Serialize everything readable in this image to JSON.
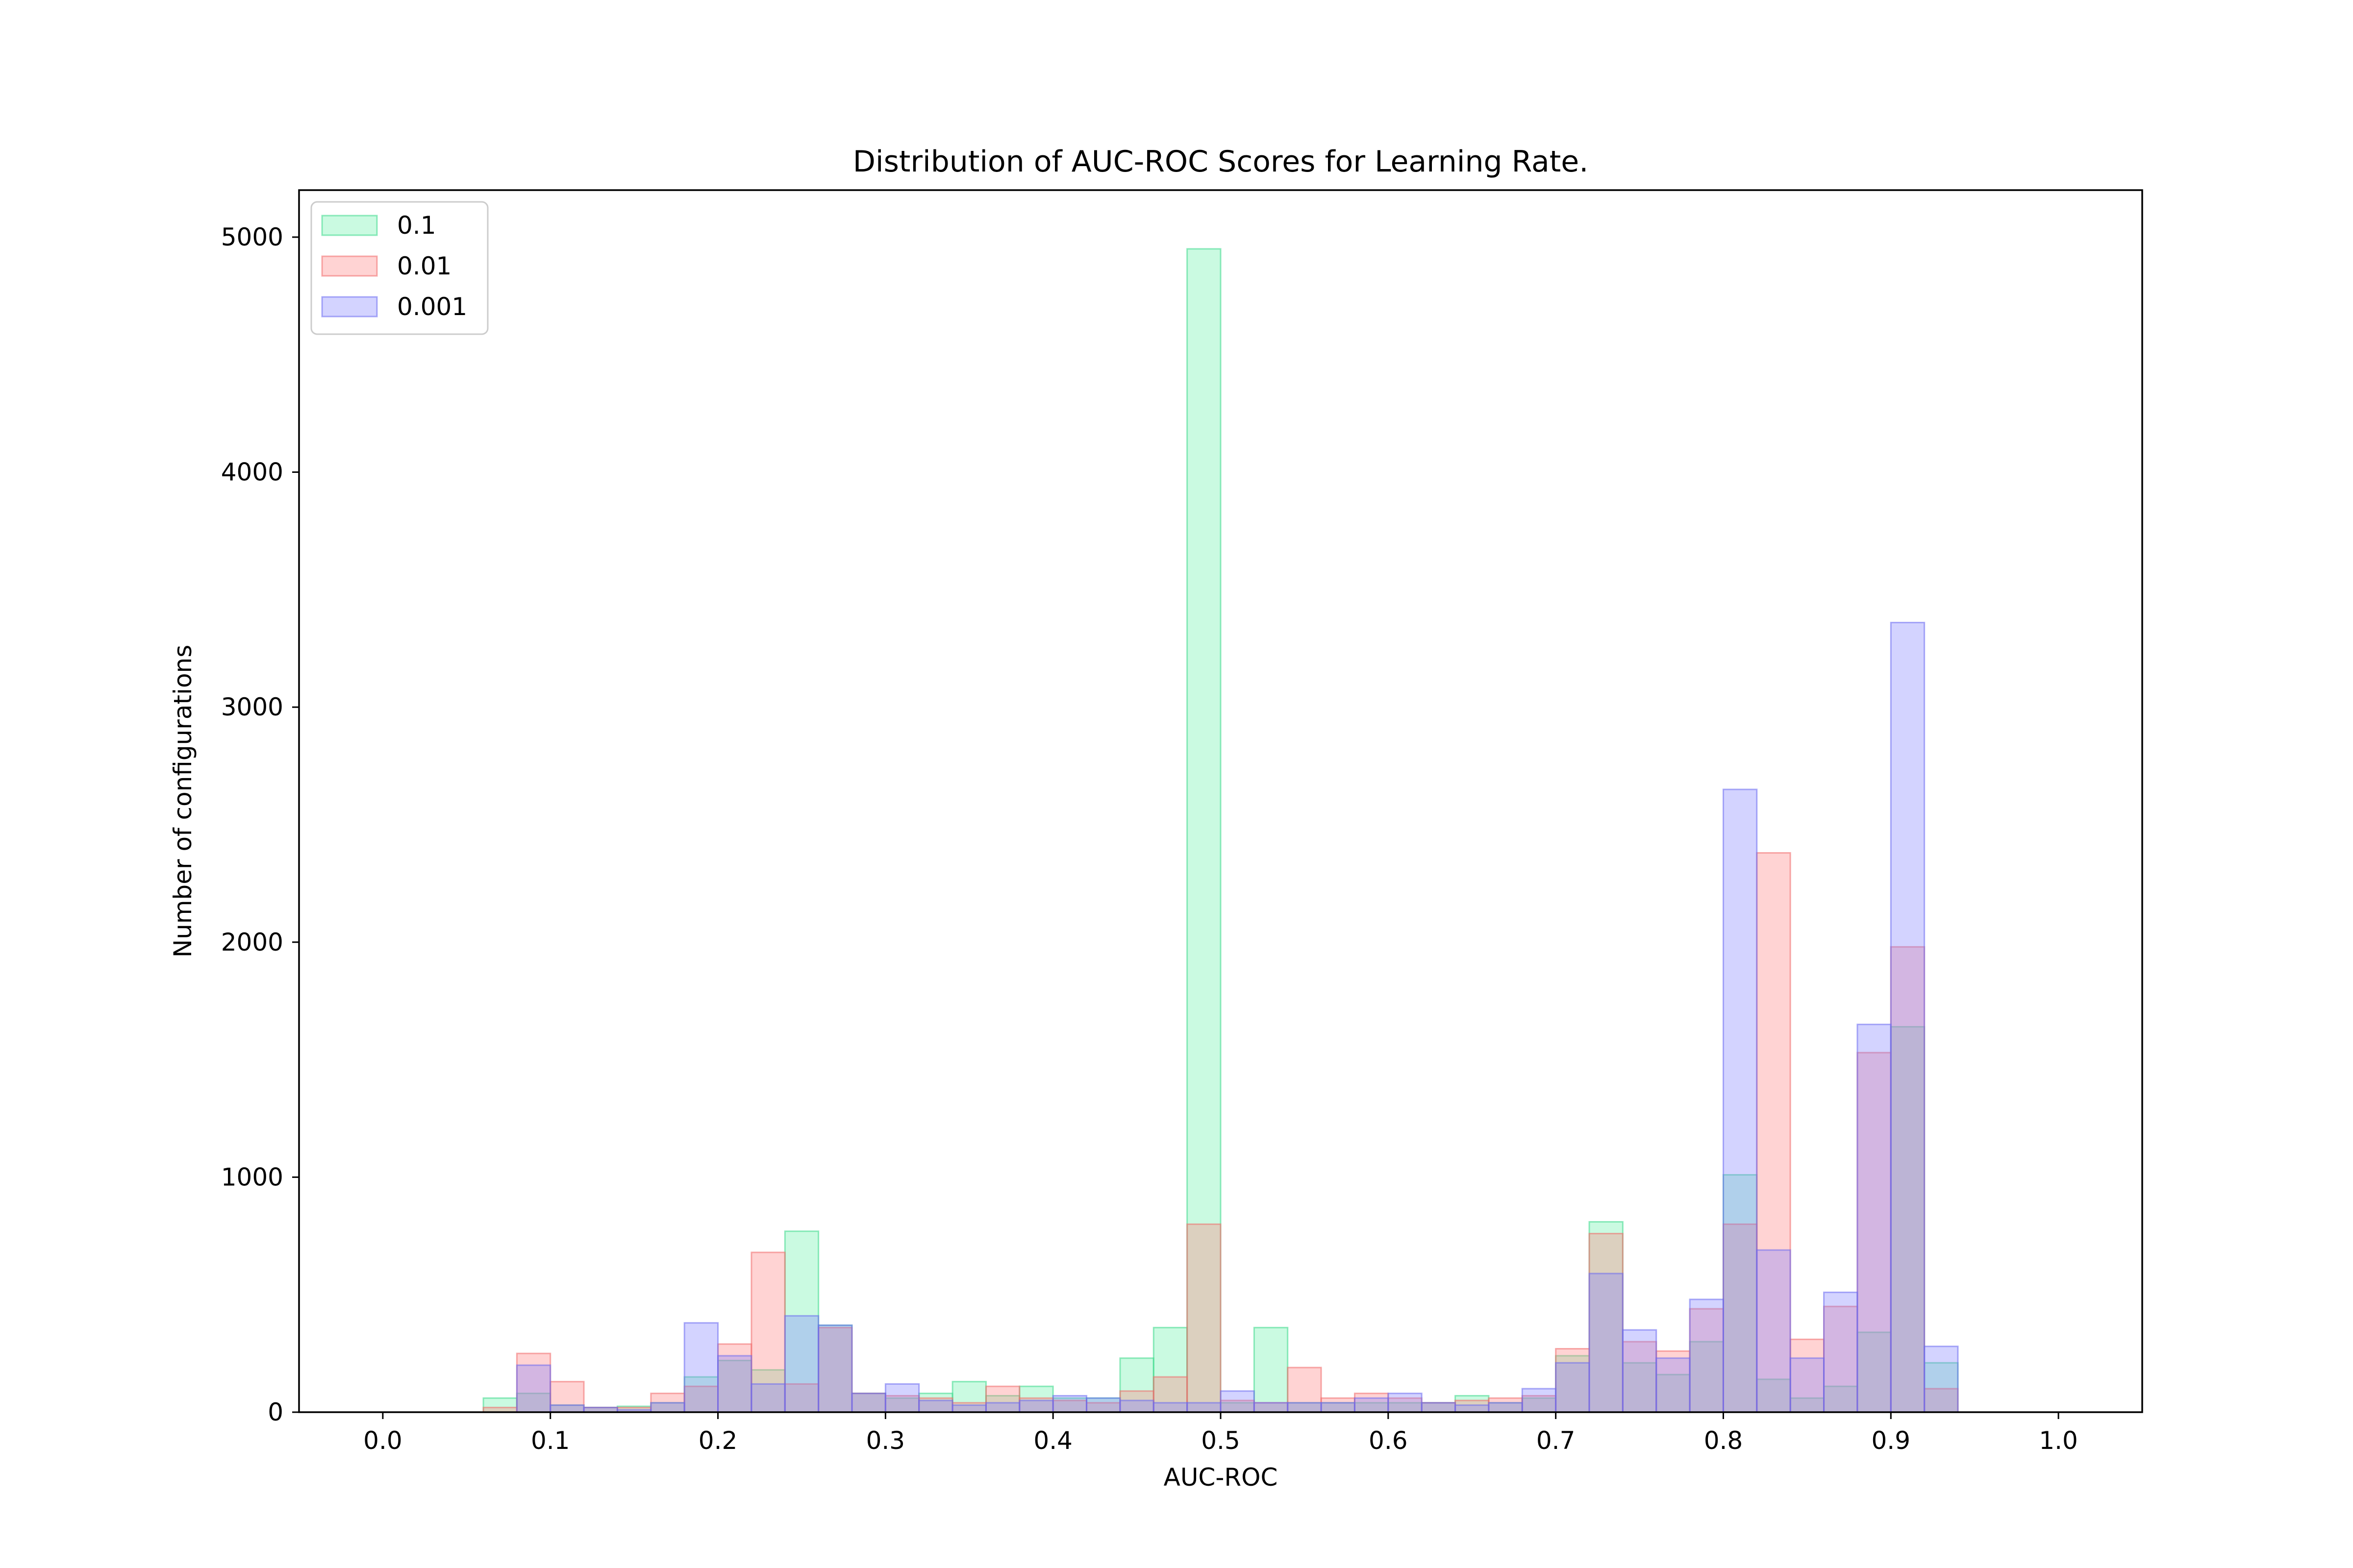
{
  "chart_data": {
    "type": "bar",
    "title": "Distribution of AUC-ROC Scores for Learning Rate.",
    "xlabel": "AUC-ROC",
    "ylabel": "Number of configurations",
    "xlim": [
      -0.05,
      1.05
    ],
    "ylim": [
      0,
      5200
    ],
    "xticks": [
      "0.0",
      "0.1",
      "0.2",
      "0.3",
      "0.4",
      "0.5",
      "0.6",
      "0.7",
      "0.8",
      "0.9",
      "1.0"
    ],
    "yticks": [
      "0",
      "1000",
      "2000",
      "3000",
      "4000",
      "5000"
    ],
    "grid": false,
    "legend_position": "upper-left",
    "bin_width": 0.02,
    "bin_start": [
      0.06,
      0.08,
      0.1,
      0.12,
      0.14,
      0.16,
      0.18,
      0.2,
      0.22,
      0.24,
      0.26,
      0.28,
      0.3,
      0.32,
      0.34,
      0.36,
      0.38,
      0.4,
      0.42,
      0.44,
      0.46,
      0.48,
      0.5,
      0.52,
      0.54,
      0.56,
      0.58,
      0.6,
      0.62,
      0.64,
      0.66,
      0.68,
      0.7,
      0.72,
      0.74,
      0.76,
      0.78,
      0.8,
      0.82,
      0.84,
      0.86,
      0.88,
      0.9,
      0.92
    ],
    "series": [
      {
        "name": "0.1",
        "color": "#66f0aa",
        "edge": "#3ad88a",
        "values": [
          60,
          80,
          30,
          20,
          25,
          40,
          150,
          220,
          180,
          770,
          370,
          80,
          60,
          80,
          130,
          70,
          110,
          60,
          60,
          230,
          360,
          4950,
          40,
          360,
          40,
          40,
          40,
          40,
          40,
          70,
          40,
          60,
          240,
          810,
          210,
          160,
          300,
          1010,
          140,
          60,
          110,
          340,
          1640,
          210
        ]
      },
      {
        "name": "0.01",
        "color": "#ff8080",
        "edge": "#f06a6a",
        "values": [
          20,
          250,
          130,
          20,
          20,
          80,
          110,
          290,
          680,
          120,
          360,
          80,
          70,
          60,
          40,
          110,
          60,
          50,
          40,
          90,
          150,
          800,
          50,
          40,
          190,
          60,
          80,
          60,
          40,
          50,
          60,
          70,
          270,
          760,
          300,
          260,
          440,
          800,
          2380,
          310,
          450,
          1530,
          1980,
          100
        ]
      },
      {
        "name": "0.001",
        "color": "#8080ff",
        "edge": "#6a6af0",
        "values": [
          0,
          200,
          30,
          20,
          10,
          40,
          380,
          240,
          120,
          410,
          370,
          80,
          120,
          50,
          30,
          40,
          50,
          70,
          60,
          50,
          40,
          40,
          90,
          40,
          40,
          40,
          60,
          80,
          40,
          30,
          40,
          100,
          210,
          590,
          350,
          230,
          480,
          2650,
          690,
          230,
          510,
          1650,
          3360,
          280
        ]
      }
    ]
  }
}
